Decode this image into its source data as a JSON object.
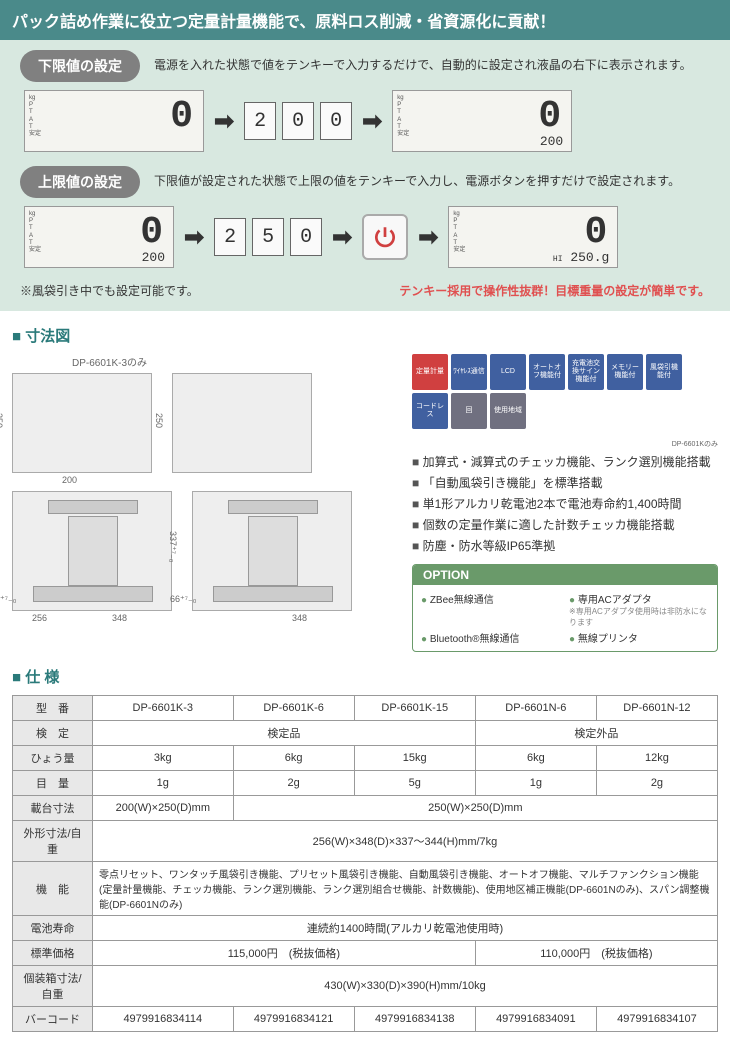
{
  "header": "パック詰め作業に役立つ定量計量機能で、原料ロス削減・省資源化に貢献！",
  "lower": {
    "btn": "下限値の設定",
    "desc": "電源を入れた状態で値をテンキーで入力するだけで、自動的に設定され液晶の右下に表示されます。",
    "lcd1_big": "0",
    "digits": [
      "2",
      "0",
      "0"
    ],
    "lcd2_big": "0",
    "lcd2_small": "200"
  },
  "upper": {
    "btn": "上限値の設定",
    "desc": "下限値が設定された状態で上限の値をテンキーで入力し、電源ボタンを押すだけで設定されます。",
    "lcd1_big": "0",
    "lcd1_small": "200",
    "digits": [
      "2",
      "5",
      "0"
    ],
    "lcd2_big": "0",
    "lcd2_small": "250.g"
  },
  "footnote_left": "※風袋引き中でも設定可能です。",
  "footnote_right": "テンキー採用で操作性抜群！目標重量の設定が簡単です。",
  "sec_dims": "寸法図",
  "dim_note": "DP-6601K-3のみ",
  "dims": {
    "w1": "200",
    "h1": "250",
    "w2": "256",
    "w3": "348",
    "h2": "66⁺⁷₋₀",
    "h3": "337⁺⁷₋₀",
    "h4": "250"
  },
  "badges": [
    {
      "txt": "定量計量",
      "cls": "badge-red"
    },
    {
      "txt": "ﾜｲﾔﾚｽ通信",
      "cls": "badge-blue"
    },
    {
      "txt": "LCD",
      "cls": "badge-blue"
    },
    {
      "txt": "オートオフ機能付",
      "cls": "badge-blue"
    },
    {
      "txt": "充電池交換サイン機能付",
      "cls": "badge-blue"
    },
    {
      "txt": "メモリー機能付",
      "cls": "badge-blue"
    },
    {
      "txt": "風袋引機能付",
      "cls": "badge-blue"
    },
    {
      "txt": "コードレス",
      "cls": "badge-blue"
    },
    {
      "txt": "回",
      "cls": "badge-gray"
    },
    {
      "txt": "使用地域",
      "cls": "badge-gray"
    }
  ],
  "badge_note": "DP-6601Kのみ",
  "features": [
    "加算式・減算式のチェッカ機能、ランク選別機能搭載",
    "「自動風袋引き機能」を標準搭載",
    "単1形アルカリ乾電池2本で電池寿命約1,400時間",
    "個数の定量作業に適した計数チェッカ機能搭載",
    "防塵・防水等級IP65準拠"
  ],
  "option": {
    "hdr": "OPTION",
    "items": [
      "ZBee無線通信",
      "専用ACアダプタ",
      "Bluetooth®無線通信",
      "無線プリンタ"
    ],
    "note": "※専用ACアダプタ使用時は非防水になります"
  },
  "sec_spec": "仕 様",
  "spec": {
    "rows": {
      "model": {
        "h": "型　番",
        "v": [
          "DP-6601K-3",
          "DP-6601K-6",
          "DP-6601K-15",
          "DP-6601N-6",
          "DP-6601N-12"
        ]
      },
      "cert": {
        "h": "検　定",
        "v1": "検定品",
        "v2": "検定外品"
      },
      "cap": {
        "h": "ひょう量",
        "v": [
          "3kg",
          "6kg",
          "15kg",
          "6kg",
          "12kg"
        ]
      },
      "div": {
        "h": "目　量",
        "v": [
          "1g",
          "2g",
          "5g",
          "1g",
          "2g"
        ]
      },
      "pan": {
        "h": "載台寸法",
        "v1": "200(W)×250(D)mm",
        "v2": "250(W)×250(D)mm"
      },
      "ext": {
        "h": "外形寸法/自重",
        "v": "256(W)×348(D)×337～344(H)mm/7kg"
      },
      "func": {
        "h": "機　能",
        "v": "零点リセット、ワンタッチ風袋引き機能、プリセット風袋引き機能、自動風袋引き機能、オートオフ機能、マルチファンクション機能(定量計量機能、チェッカ機能、ランク選別機能、ランク選別組合せ機能、計数機能)、使用地区補正機能(DP-6601Nのみ)、スパン調整機能(DP-6601Nのみ)"
      },
      "batt": {
        "h": "電池寿命",
        "v": "連続約1400時間(アルカリ乾電池使用時)"
      },
      "price": {
        "h": "標準価格",
        "v1": "115,000円　(税抜価格)",
        "v2": "110,000円　(税抜価格)"
      },
      "pack": {
        "h": "個装箱寸法/自重",
        "v": "430(W)×330(D)×390(H)mm/10kg"
      },
      "bar": {
        "h": "バーコード",
        "v": [
          "4979916834114",
          "4979916834121",
          "4979916834138",
          "4979916834091",
          "4979916834107"
        ]
      }
    }
  },
  "colors": {
    "power": "#d04040"
  }
}
